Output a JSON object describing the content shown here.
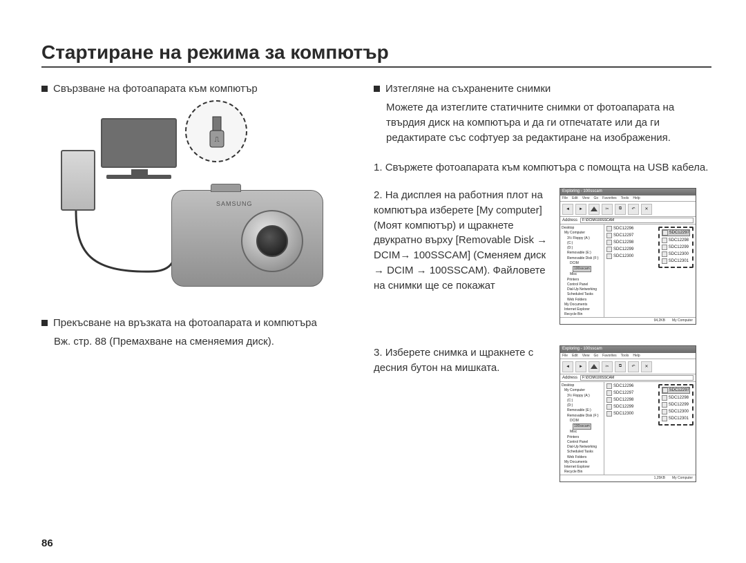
{
  "title": "Стартиране на режима за компютър",
  "page_number": "86",
  "left": {
    "heading1": "Свързване на фотоапарата към компютър",
    "heading2": "Прекъсване на връзката на фотоапарата и компютъра",
    "heading2_sub": "Вж. стр. 88 (Премахване на сменяемия диск).",
    "camera_brand": "SAMSUNG"
  },
  "right": {
    "heading": "Изтегляне на съхранените снимки",
    "intro": "Можете да изтеглите статичните снимки от фотоапарата на твърдия диск на компютъра и да ги отпечатате или да ги редактирате със софтуер за редактиране на изображения.",
    "step1_num": "1.",
    "step1": "Свържете фотоапарата към компютъра с помощта на USB кабела.",
    "step2_num": "2.",
    "step2": "На дисплея на работния плот на компютъра изберете [My computer] (Моят компютър) и щракнете двукратно върху [Removable Disk → DCIM→ 100SSCAM] (Сменяем диск → DCIM → 100SSCAM). Файловете на снимки ще се покажат",
    "step3_num": "3.",
    "step3": "Изберете снимка и щракнете с десния бутон на мишката."
  },
  "explorer": {
    "title": "Exploring - 100sscam",
    "menu": [
      "File",
      "Edit",
      "View",
      "Go",
      "Favorites",
      "Tools",
      "Help"
    ],
    "buttons": [
      "Back",
      "Fwd",
      "Up",
      "Cut",
      "Copy",
      "Undo",
      "Delete"
    ],
    "addr_label": "Address",
    "addr_value1": "F:\\DCIM\\100SSCAM",
    "addr_value2": "F:\\DCIM\\100SSCAM",
    "tree": [
      "Desktop",
      " My Computer",
      "  3½ Floppy (A:)",
      "  (C:)",
      "  (D:)",
      "  Removable (E:)",
      "  Removable Disk (F:)",
      "   DCIM",
      "    100sscam",
      "   Misc",
      "  Printers",
      "  Control Panel",
      "  Dial-Up Networking",
      "  Scheduled Tasks",
      "  Web Folders",
      " My Documents",
      " Internet Explorer",
      " Recycle Bin"
    ],
    "tree_selected_index": 8,
    "files_a": [
      "SDC12296",
      "SDC12297",
      "SDC12298",
      "SDC12299",
      "SDC12300"
    ],
    "files_b": [
      "SDC12297",
      "SDC12298",
      "SDC12299",
      "SDC12300",
      "SDC12301"
    ],
    "status1_left": "94,2KB",
    "status1_right": "My Computer",
    "status2_left": "1,25KB",
    "status2_right": "My Computer"
  },
  "colors": {
    "text": "#333333",
    "heading": "#2a2a2a",
    "dashed": "#333333",
    "selection": "#cfcfcf"
  }
}
